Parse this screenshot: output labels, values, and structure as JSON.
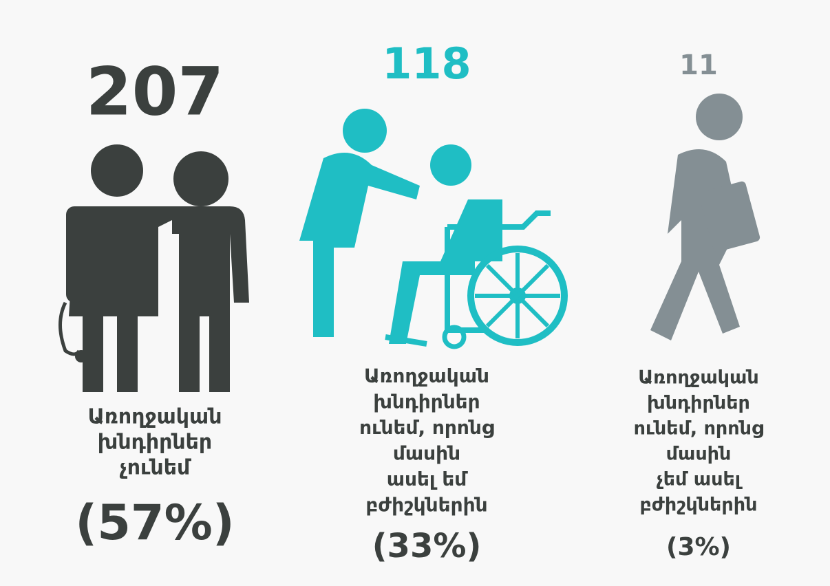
{
  "items": [
    {
      "count": "207",
      "label": [
        "Առողջական",
        "խնդիրներ",
        "չունեմ"
      ],
      "percent": "(57%)"
    },
    {
      "count": "118",
      "label": [
        "Առողջական",
        "խնդիրներ",
        "ունեմ, որոնց",
        "մասին",
        "ասել եմ",
        "բժիշկներին"
      ],
      "percent": "(33%)"
    },
    {
      "count": "11",
      "label": [
        "Առողջական",
        "խնդիրներ",
        "ունեմ, որոնց",
        "մասին",
        "չեմ ասել",
        "բժիշկներին"
      ],
      "percent": "(3%)"
    }
  ]
}
